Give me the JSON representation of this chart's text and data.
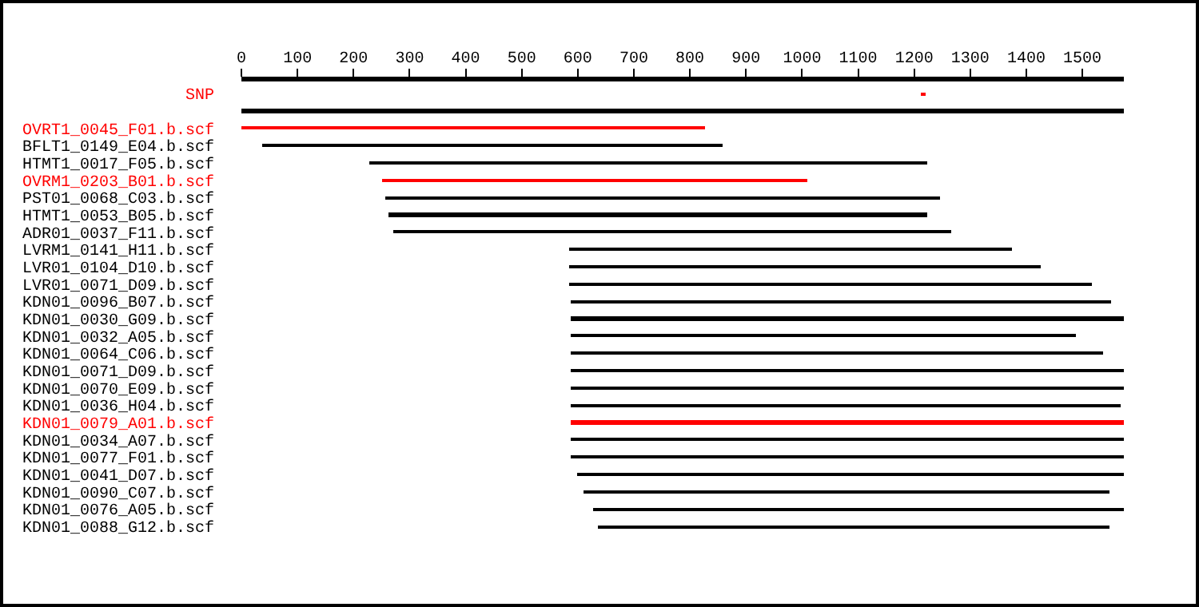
{
  "chart_data": {
    "type": "bar",
    "orientation": "horizontal",
    "categories": [
      "SNP",
      null,
      "OVRT1_0045_F01.b.scf",
      "BFLT1_0149_E04.b.scf",
      "HTMT1_0017_F05.b.scf",
      "OVRM1_0203_B01.b.scf",
      "PST01_0068_C03.b.scf",
      "HTMT1_0053_B05.b.scf",
      "ADR01_0037_F11.b.scf",
      "LVRM1_0141_H11.b.scf",
      "LVR01_0104_D10.b.scf",
      "LVR01_0071_D09.b.scf",
      "KDN01_0096_B07.b.scf",
      "KDN01_0030_G09.b.scf",
      "KDN01_0032_A05.b.scf",
      "KDN01_0064_C06.b.scf",
      "KDN01_0071_D09.b.scf",
      "KDN01_0070_E09.b.scf",
      "KDN01_0036_H04.b.scf",
      "KDN01_0079_A01.b.scf",
      "KDN01_0034_A07.b.scf",
      "KDN01_0077_F01.b.scf",
      "KDN01_0041_D07.b.scf",
      "KDN01_0090_C07.b.scf",
      "KDN01_0076_A05.b.scf",
      "KDN01_0088_G12.b.scf"
    ],
    "base": [
      1212,
      0,
      0,
      37,
      229,
      251,
      258,
      263,
      271,
      584,
      584,
      584,
      587,
      587,
      587,
      587,
      587,
      587,
      587,
      587,
      587,
      587,
      600,
      610,
      626,
      635
    ],
    "values": [
      8,
      1574,
      828,
      821,
      995,
      758,
      988,
      961,
      995,
      789,
      842,
      934,
      963,
      989,
      901,
      949,
      986,
      989,
      980,
      986,
      986,
      986,
      973,
      937,
      950,
      912
    ],
    "colors": [
      "#ff0000",
      "#000000",
      "#ff0000",
      "#000000",
      "#000000",
      "#ff0000",
      "#000000",
      "#000000",
      "#000000",
      "#000000",
      "#000000",
      "#000000",
      "#000000",
      "#000000",
      "#000000",
      "#000000",
      "#000000",
      "#000000",
      "#000000",
      "#ff0000",
      "#000000",
      "#000000",
      "#000000",
      "#000000",
      "#000000",
      "#000000"
    ],
    "xlim": [
      0,
      1574
    ],
    "xticks": [
      0,
      100,
      200,
      300,
      400,
      500,
      600,
      700,
      800,
      900,
      1000,
      1100,
      1200,
      1300,
      1400,
      1500
    ],
    "legend": false
  }
}
